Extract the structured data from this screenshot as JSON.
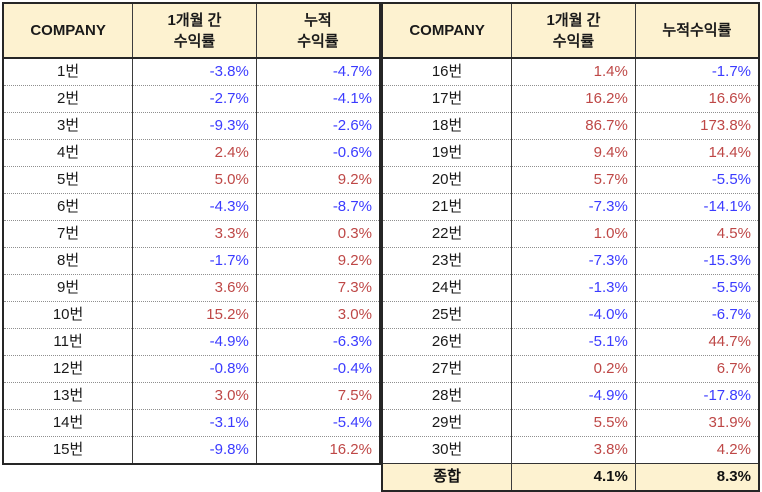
{
  "colors": {
    "positive_text": "#BE4746",
    "negative_text": "#3B3BFF",
    "header_fill": "#FDF2D0",
    "grid_border": "#262626"
  },
  "tables": {
    "left_header": {
      "company": "COMPANY",
      "monthly_line1": "1개월 간",
      "monthly_line2": "수익률",
      "cumulative_line1": "누적",
      "cumulative_line2": "수익률"
    },
    "right_header": {
      "company": "COMPANY",
      "monthly_line1": "1개월 간",
      "monthly_line2": "수익률",
      "cumulative": "누적수익률"
    },
    "left_rows": [
      {
        "company": "1번",
        "monthly": "-3.8%",
        "cumulative": "-4.7%"
      },
      {
        "company": "2번",
        "monthly": "-2.7%",
        "cumulative": "-4.1%"
      },
      {
        "company": "3번",
        "monthly": "-9.3%",
        "cumulative": "-2.6%"
      },
      {
        "company": "4번",
        "monthly": "2.4%",
        "cumulative": "-0.6%"
      },
      {
        "company": "5번",
        "monthly": "5.0%",
        "cumulative": "9.2%"
      },
      {
        "company": "6번",
        "monthly": "-4.3%",
        "cumulative": "-8.7%"
      },
      {
        "company": "7번",
        "monthly": "3.3%",
        "cumulative": "0.3%"
      },
      {
        "company": "8번",
        "monthly": "-1.7%",
        "cumulative": "9.2%"
      },
      {
        "company": "9번",
        "monthly": "3.6%",
        "cumulative": "7.3%"
      },
      {
        "company": "10번",
        "monthly": "15.2%",
        "cumulative": "3.0%"
      },
      {
        "company": "11번",
        "monthly": "-4.9%",
        "cumulative": "-6.3%"
      },
      {
        "company": "12번",
        "monthly": "-0.8%",
        "cumulative": "-0.4%"
      },
      {
        "company": "13번",
        "monthly": "3.0%",
        "cumulative": "7.5%"
      },
      {
        "company": "14번",
        "monthly": "-3.1%",
        "cumulative": "-5.4%"
      },
      {
        "company": "15번",
        "monthly": "-9.8%",
        "cumulative": "16.2%"
      }
    ],
    "right_rows": [
      {
        "company": "16번",
        "monthly": "1.4%",
        "cumulative": "-1.7%"
      },
      {
        "company": "17번",
        "monthly": "16.2%",
        "cumulative": "16.6%"
      },
      {
        "company": "18번",
        "monthly": "86.7%",
        "cumulative": "173.8%"
      },
      {
        "company": "19번",
        "monthly": "9.4%",
        "cumulative": "14.4%"
      },
      {
        "company": "20번",
        "monthly": "5.7%",
        "cumulative": "-5.5%"
      },
      {
        "company": "21번",
        "monthly": "-7.3%",
        "cumulative": "-14.1%"
      },
      {
        "company": "22번",
        "monthly": "1.0%",
        "cumulative": "4.5%"
      },
      {
        "company": "23번",
        "monthly": "-7.3%",
        "cumulative": "-15.3%"
      },
      {
        "company": "24번",
        "monthly": "-1.3%",
        "cumulative": "-5.5%"
      },
      {
        "company": "25번",
        "monthly": "-4.0%",
        "cumulative": "-6.7%"
      },
      {
        "company": "26번",
        "monthly": "-5.1%",
        "cumulative": "44.7%"
      },
      {
        "company": "27번",
        "monthly": "0.2%",
        "cumulative": "6.7%"
      },
      {
        "company": "28번",
        "monthly": "-4.9%",
        "cumulative": "-17.8%"
      },
      {
        "company": "29번",
        "monthly": "5.5%",
        "cumulative": "31.9%"
      },
      {
        "company": "30번",
        "monthly": "3.8%",
        "cumulative": "4.2%"
      }
    ],
    "summary": {
      "label": "종합",
      "monthly": "4.1%",
      "cumulative": "8.3%"
    }
  }
}
